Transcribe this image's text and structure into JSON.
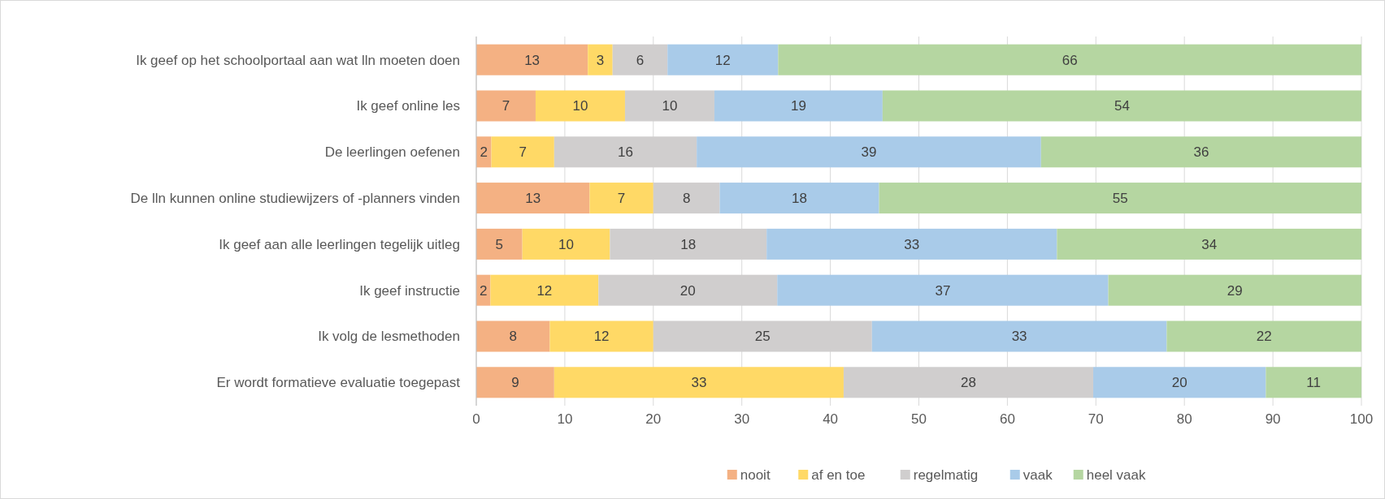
{
  "chart_data": {
    "type": "bar",
    "orientation": "horizontal",
    "stacked": true,
    "categories": [
      "Ik geef op het schoolportaal aan wat lln moeten doen",
      "Ik geef online les",
      "De leerlingen oefenen",
      "De lln kunnen online studiewijzers of -planners vinden",
      "Ik geef aan alle leerlingen tegelijk uitleg",
      "Ik geef instructie",
      "Ik volg de lesmethoden",
      "Er wordt formatieve evaluatie toegepast"
    ],
    "series": [
      {
        "name": "nooit",
        "color": "#f4b183",
        "values": [
          12.6,
          6.7,
          1.7,
          12.8,
          5.2,
          1.6,
          8.3,
          8.8
        ],
        "value_labels": [
          "13",
          "7",
          "2",
          "13",
          "5",
          "2",
          "8",
          "9"
        ]
      },
      {
        "name": "af en toe",
        "color": "#ffd966",
        "values": [
          2.8,
          10.1,
          7.1,
          7.2,
          9.9,
          12.2,
          11.7,
          32.7
        ],
        "value_labels": [
          "3",
          "10",
          "7",
          "7",
          "10",
          "12",
          "12",
          "33"
        ]
      },
      {
        "name": "regelmatig",
        "color": "#d0cece",
        "values": [
          6.2,
          10.1,
          16.1,
          7.5,
          17.7,
          20.2,
          24.7,
          28.2
        ],
        "value_labels": [
          "6",
          "10",
          "16",
          "8",
          "18",
          "20",
          "25",
          "28"
        ]
      },
      {
        "name": "vaak",
        "color": "#a9cbe9",
        "values": [
          12.5,
          19.0,
          38.9,
          18.0,
          32.8,
          37.4,
          33.3,
          19.5
        ],
        "value_labels": [
          "12",
          "19",
          "39",
          "18",
          "33",
          "37",
          "33",
          "20"
        ]
      },
      {
        "name": "heel vaak",
        "color": "#b5d6a1",
        "values": [
          65.9,
          54.1,
          36.2,
          54.5,
          34.4,
          28.6,
          22.0,
          10.8
        ],
        "value_labels": [
          "66",
          "54",
          "36",
          "55",
          "34",
          "29",
          "22",
          "11"
        ]
      }
    ],
    "xlim": [
      0,
      100
    ],
    "xticks": [
      0,
      10,
      20,
      30,
      40,
      50,
      60,
      70,
      80,
      90,
      100
    ],
    "grid": "x",
    "legend": "bottom"
  }
}
